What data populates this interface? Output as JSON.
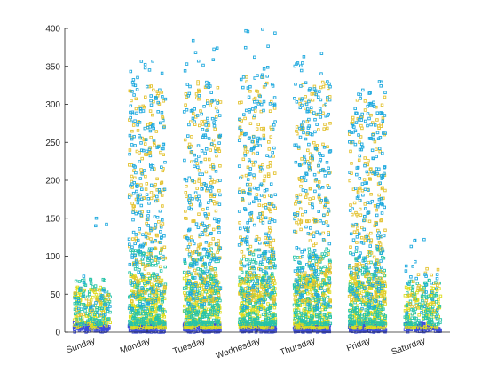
{
  "chart_data": {
    "type": "scatter",
    "title": "",
    "xlabel": "",
    "ylabel": "",
    "categories": [
      "Sunday",
      "Monday",
      "Tuesday",
      "Wednesday",
      "Thursday",
      "Friday",
      "Saturday"
    ],
    "ylim": [
      0,
      400
    ],
    "yticks": [
      0,
      50,
      100,
      150,
      200,
      250,
      300,
      350,
      400
    ],
    "grid": false,
    "legend": "none",
    "marker": "square",
    "colors": {
      "low": "#3e4cdb",
      "mid_low": "#dddd1e",
      "mid": "#27c4a8",
      "high": "#e3c230",
      "top": "#1fa9de"
    },
    "series_summary": [
      {
        "category": "Sunday",
        "approx_max": 150,
        "typical_max": 60
      },
      {
        "category": "Monday",
        "approx_max": 357,
        "typical_max": 330
      },
      {
        "category": "Tuesday",
        "approx_max": 384,
        "typical_max": 330
      },
      {
        "category": "Wednesday",
        "approx_max": 399,
        "typical_max": 340
      },
      {
        "category": "Thursday",
        "approx_max": 367,
        "typical_max": 330
      },
      {
        "category": "Friday",
        "approx_max": 330,
        "typical_max": 310
      },
      {
        "category": "Saturday",
        "approx_max": 122,
        "typical_max": 90
      }
    ]
  }
}
